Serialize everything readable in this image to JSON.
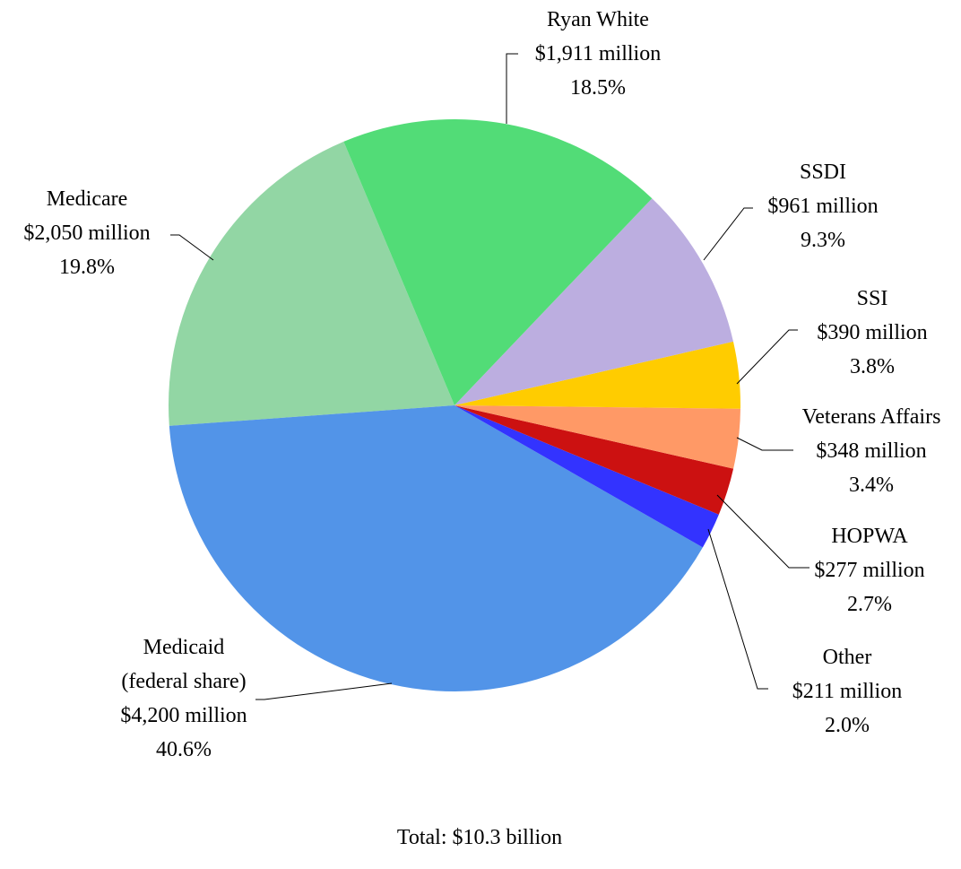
{
  "chart_data": {
    "type": "pie",
    "categories": [
      "Ryan White",
      "SSDI",
      "SSI",
      "Veterans Affairs",
      "HOPWA",
      "Other",
      "Medicaid (federal share)",
      "Medicare"
    ],
    "values": [
      1911,
      961,
      390,
      348,
      277,
      211,
      4200,
      2050
    ],
    "value_labels": [
      "$1,911 million",
      "$961 million",
      "$390 million",
      "$348 million",
      "$277 million",
      "$211 million",
      "$4,200 million",
      "$2,050 million"
    ],
    "percents": [
      18.5,
      9.3,
      3.8,
      3.4,
      2.7,
      2.0,
      40.6,
      19.8
    ],
    "percent_labels": [
      "18.5%",
      "9.3%",
      "3.8%",
      "3.4%",
      "2.7%",
      "2.0%",
      "40.6%",
      "19.8%"
    ],
    "colors": [
      "#52dc77",
      "#bcaee0",
      "#ffcc00",
      "#ff9966",
      "#cc1111",
      "#3333ff",
      "#5294e8",
      "#92d6a4"
    ],
    "note": "Total:  $10.3 billion"
  }
}
